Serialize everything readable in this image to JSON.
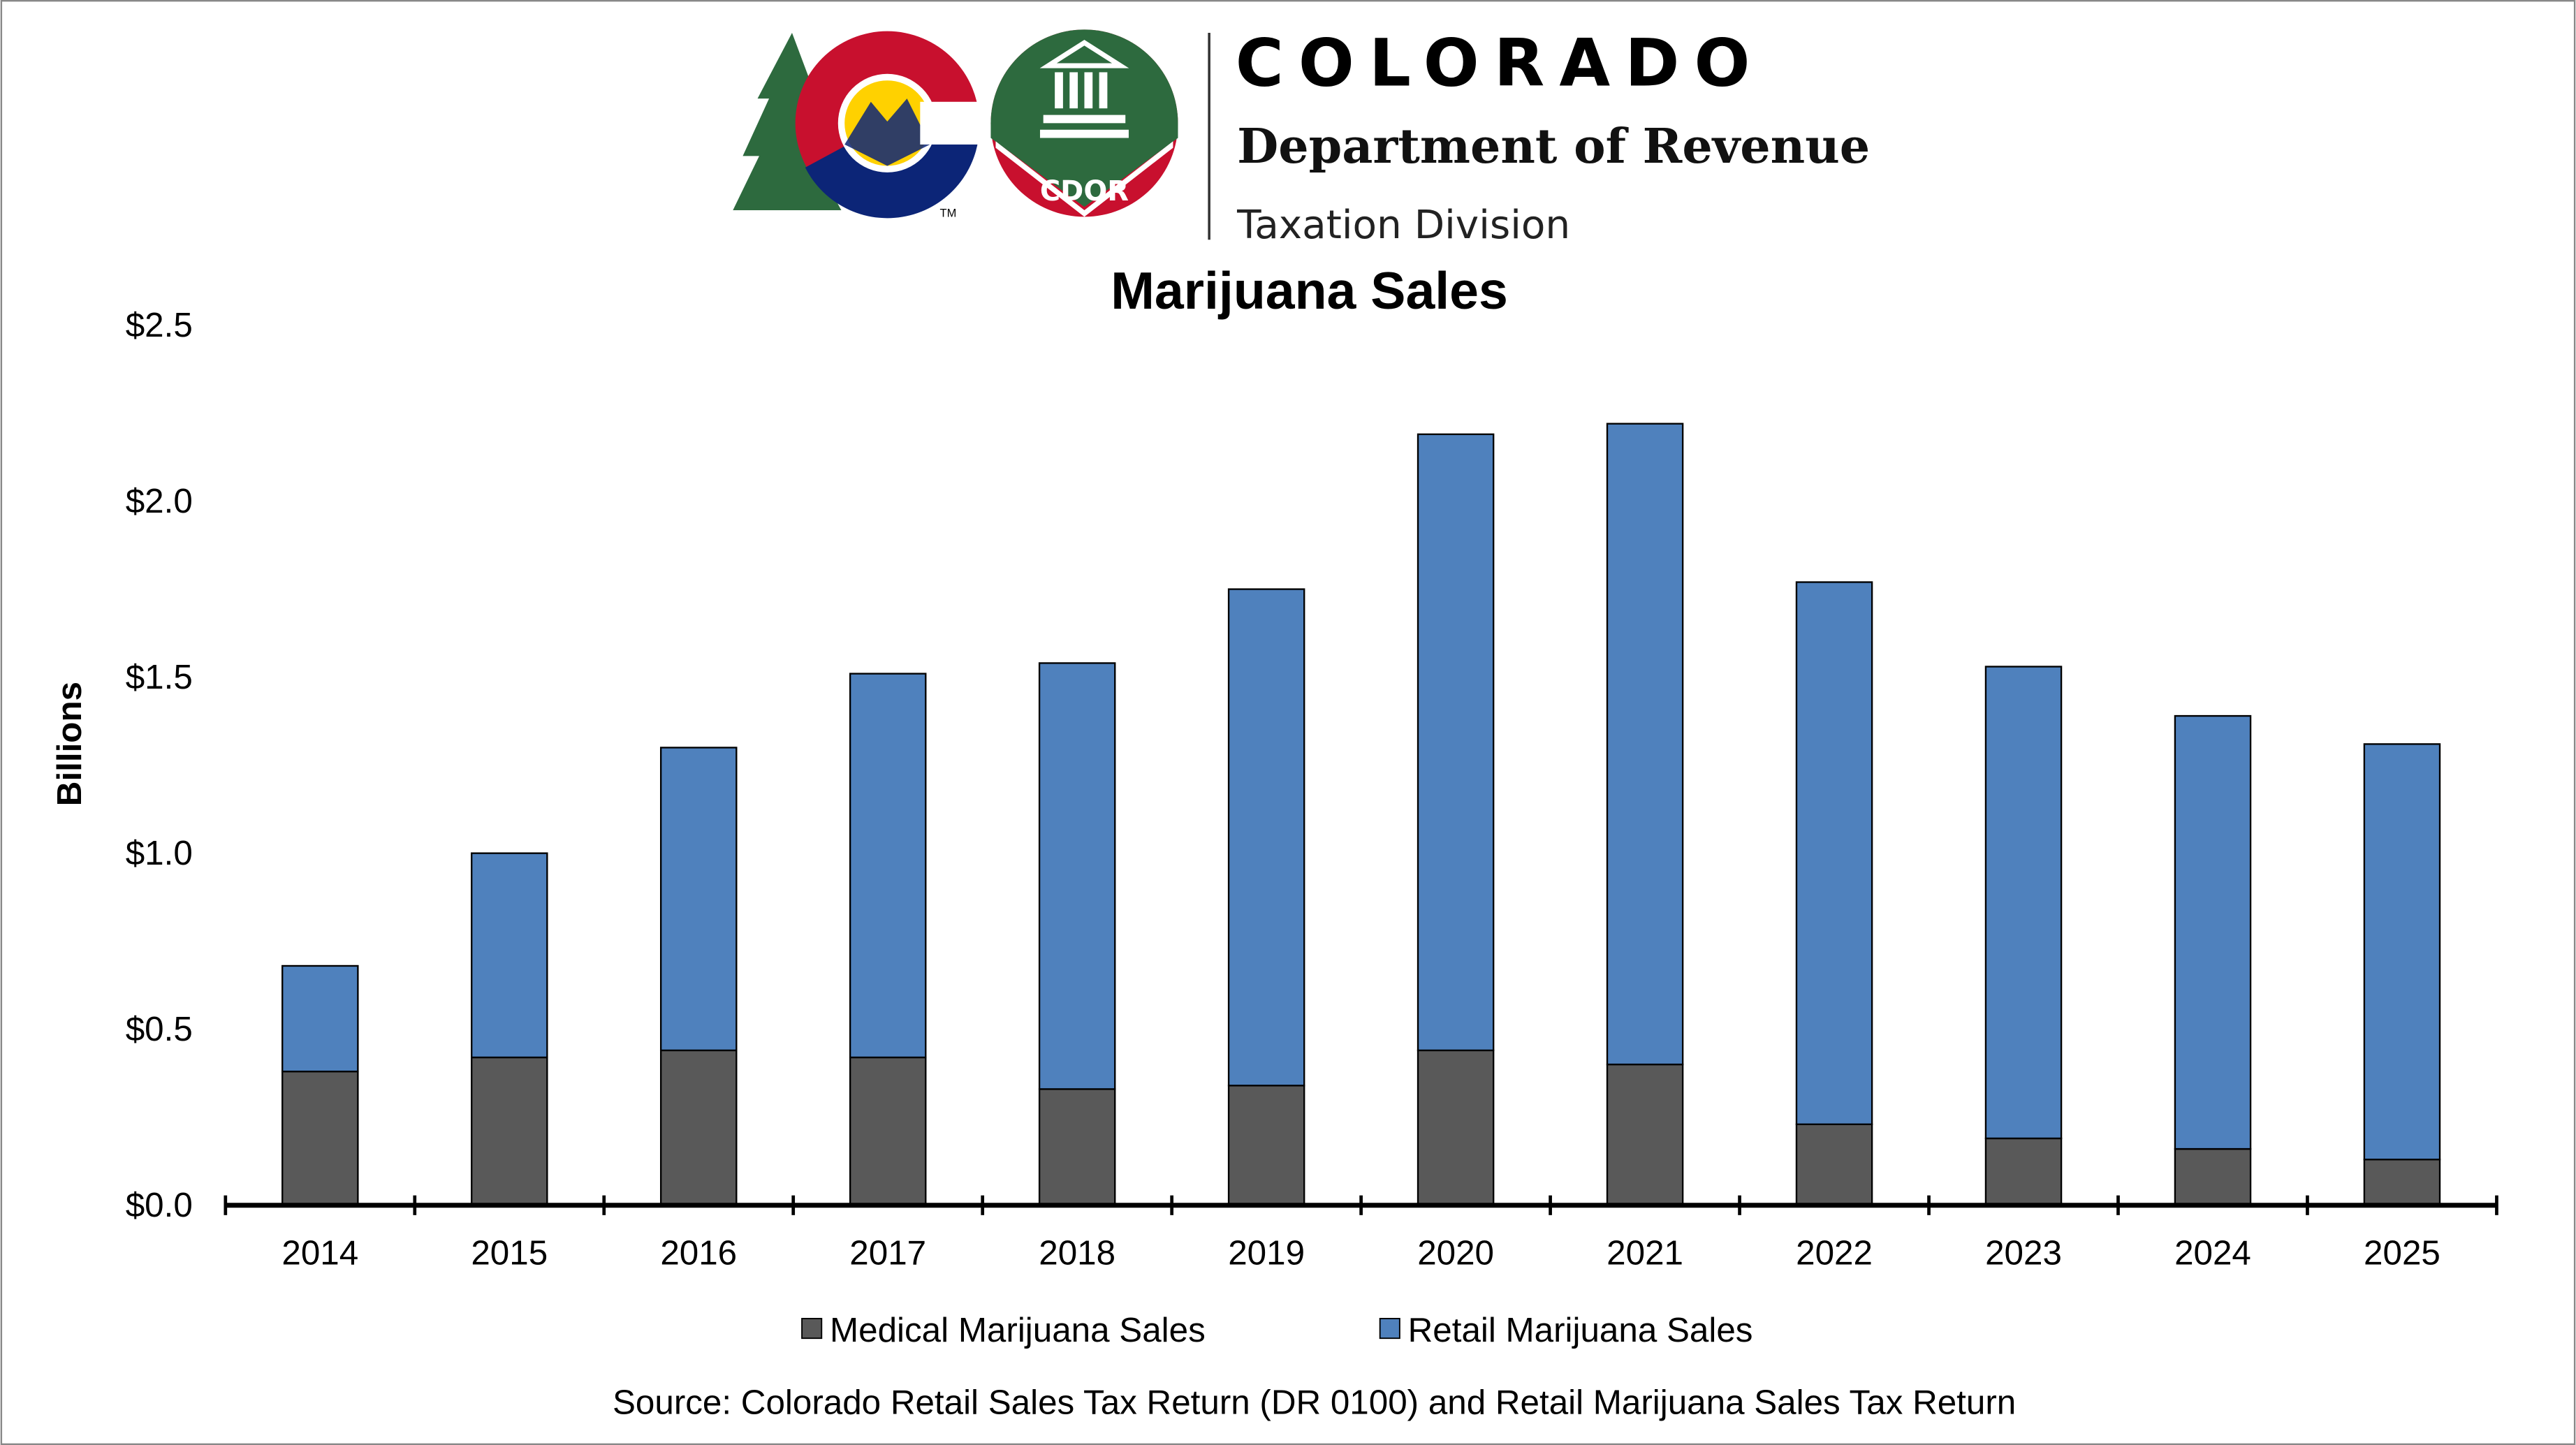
{
  "logo": {
    "state": "COLORADO",
    "department": "Department of Revenue",
    "division": "Taxation Division",
    "badge": "CDOR",
    "trademark": "TM"
  },
  "chart_data": {
    "type": "bar",
    "stacked": true,
    "title": "Marijuana Sales",
    "xlabel": "",
    "ylabel": "Billions",
    "ylim": [
      0,
      2.5
    ],
    "yticks": [
      0,
      0.5,
      1.0,
      1.5,
      2.0,
      2.5
    ],
    "ytick_labels": [
      "$0.0",
      "$0.5",
      "$1.0",
      "$1.5",
      "$2.0",
      "$2.5"
    ],
    "grid": false,
    "legend_position": "bottom",
    "categories": [
      "2014",
      "2015",
      "2016",
      "2017",
      "2018",
      "2019",
      "2020",
      "2021",
      "2022",
      "2023",
      "2024",
      "2025"
    ],
    "series": [
      {
        "name": "Medical Marijuana Sales",
        "color": "#595959",
        "values": [
          0.38,
          0.42,
          0.44,
          0.42,
          0.33,
          0.34,
          0.44,
          0.4,
          0.23,
          0.19,
          0.16,
          0.13
        ]
      },
      {
        "name": "Retail Marijuana Sales",
        "color": "#4f81bd",
        "values": [
          0.3,
          0.58,
          0.86,
          1.09,
          1.21,
          1.41,
          1.75,
          1.82,
          1.54,
          1.34,
          1.23,
          1.18
        ]
      }
    ],
    "source": "Source: Colorado Retail Sales Tax Return (DR 0100) and Retail Marijuana Sales Tax Return"
  }
}
